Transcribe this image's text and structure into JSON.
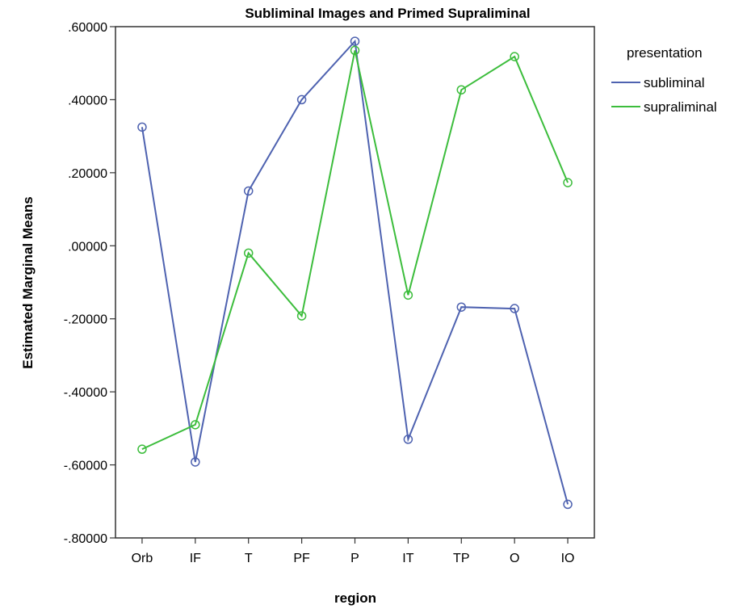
{
  "chart_data": {
    "type": "line",
    "title": "Subliminal Images and Primed Supraliminal",
    "xlabel": "region",
    "ylabel": "Estimated Marginal Means",
    "categories": [
      "Orb",
      "IF",
      "T",
      "PF",
      "P",
      "IT",
      "TP",
      "O",
      "IO"
    ],
    "y_ticks": [
      ".60000",
      ".40000",
      ".20000",
      ".00000",
      "-.20000",
      "-.40000",
      "-.60000",
      "-.80000"
    ],
    "ylim": [
      -0.8,
      0.6
    ],
    "grid": false,
    "legend": {
      "title": "presentation",
      "placement": "right"
    },
    "series": [
      {
        "name": "subliminal",
        "color": "#4e62b0",
        "values": [
          0.325,
          -0.592,
          0.15,
          0.4,
          0.56,
          -0.53,
          -0.168,
          -0.172,
          -0.708
        ]
      },
      {
        "name": "supraliminal",
        "color": "#3cbd3c",
        "values": [
          -0.557,
          -0.49,
          -0.02,
          -0.192,
          0.535,
          -0.135,
          0.427,
          0.518,
          0.173
        ]
      }
    ]
  }
}
